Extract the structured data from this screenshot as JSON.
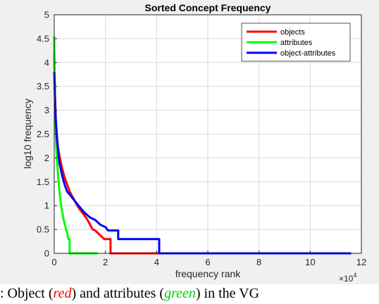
{
  "chart_data": {
    "type": "line",
    "title": "Sorted Concept Frequency",
    "xlabel": "frequency rank",
    "ylabel": "log10 frequency",
    "x_multiplier_label": "×10",
    "x_multiplier_exponent": "4",
    "xlim": [
      0,
      12
    ],
    "ylim": [
      0,
      5
    ],
    "xticks": [
      0,
      2,
      4,
      6,
      8,
      10,
      12
    ],
    "yticks": [
      0,
      0.5,
      1,
      1.5,
      2,
      2.5,
      3,
      3.5,
      4,
      4.5,
      5
    ],
    "xtick_labels": [
      "0",
      "2",
      "4",
      "6",
      "8",
      "10",
      "12"
    ],
    "ytick_labels": [
      "0",
      "0.5",
      "1",
      "1.5",
      "2",
      "2.5",
      "3",
      "3.5",
      "4",
      "4.5",
      "5"
    ],
    "grid": true,
    "legend_position": "top-right",
    "series": [
      {
        "name": "objects",
        "color": "#ff0000",
        "points": [
          [
            0,
            4.2
          ],
          [
            0.03,
            3.3
          ],
          [
            0.06,
            2.8
          ],
          [
            0.1,
            2.5
          ],
          [
            0.15,
            2.2
          ],
          [
            0.22,
            2.0
          ],
          [
            0.3,
            1.8
          ],
          [
            0.4,
            1.6
          ],
          [
            0.5,
            1.45
          ],
          [
            0.6,
            1.3
          ],
          [
            0.7,
            1.2
          ],
          [
            0.8,
            1.1
          ],
          [
            0.9,
            1.0
          ],
          [
            1.0,
            0.92
          ],
          [
            1.1,
            0.85
          ],
          [
            1.2,
            0.78
          ],
          [
            1.3,
            0.7
          ],
          [
            1.4,
            0.6
          ],
          [
            1.5,
            0.5
          ],
          [
            1.6,
            0.48
          ],
          [
            1.95,
            0.3
          ],
          [
            2.2,
            0.3
          ],
          [
            2.2,
            0
          ],
          [
            4.6,
            0
          ]
        ]
      },
      {
        "name": "attributes",
        "color": "#00ff00",
        "points": [
          [
            0,
            4.55
          ],
          [
            0.02,
            3.5
          ],
          [
            0.04,
            2.9
          ],
          [
            0.07,
            2.4
          ],
          [
            0.1,
            2.0
          ],
          [
            0.14,
            1.7
          ],
          [
            0.18,
            1.45
          ],
          [
            0.22,
            1.2
          ],
          [
            0.27,
            1.0
          ],
          [
            0.32,
            0.85
          ],
          [
            0.37,
            0.7
          ],
          [
            0.42,
            0.6
          ],
          [
            0.47,
            0.48
          ],
          [
            0.5,
            0.45
          ],
          [
            0.55,
            0.3
          ],
          [
            0.6,
            0.3
          ],
          [
            0.6,
            0
          ],
          [
            1.7,
            0
          ]
        ]
      },
      {
        "name": "object-attributes",
        "color": "#0000ff",
        "points": [
          [
            0,
            3.8
          ],
          [
            0.03,
            3.2
          ],
          [
            0.06,
            2.8
          ],
          [
            0.1,
            2.45
          ],
          [
            0.15,
            2.15
          ],
          [
            0.2,
            1.9
          ],
          [
            0.3,
            1.65
          ],
          [
            0.4,
            1.45
          ],
          [
            0.5,
            1.3
          ],
          [
            0.65,
            1.2
          ],
          [
            0.8,
            1.1
          ],
          [
            0.95,
            1.0
          ],
          [
            1.1,
            0.9
          ],
          [
            1.25,
            0.82
          ],
          [
            1.4,
            0.75
          ],
          [
            1.6,
            0.7
          ],
          [
            1.8,
            0.6
          ],
          [
            2.0,
            0.55
          ],
          [
            2.1,
            0.48
          ],
          [
            2.5,
            0.48
          ],
          [
            2.5,
            0.3
          ],
          [
            4.1,
            0.3
          ],
          [
            4.1,
            0
          ],
          [
            11.6,
            0
          ]
        ]
      }
    ]
  },
  "caption": {
    "prefix": ": Object (",
    "red_word": "red",
    "middle": ") and attributes (",
    "green_word": "green",
    "suffix": ") in the VG"
  }
}
